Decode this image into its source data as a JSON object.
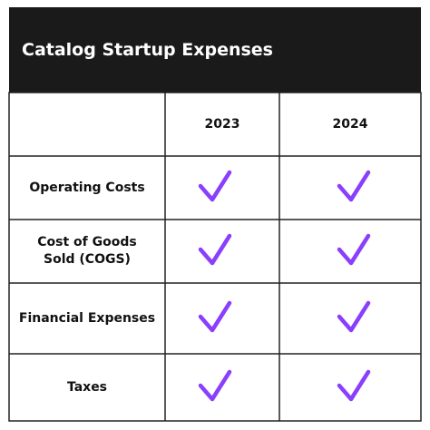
{
  "title": "Catalog Startup Expenses",
  "table": {
    "header": [
      "2023",
      "2024"
    ],
    "rows": [
      "Operating Costs",
      "Cost of Goods Sold (COGS)",
      "Financial Expenses",
      "Taxes"
    ]
  }
}
